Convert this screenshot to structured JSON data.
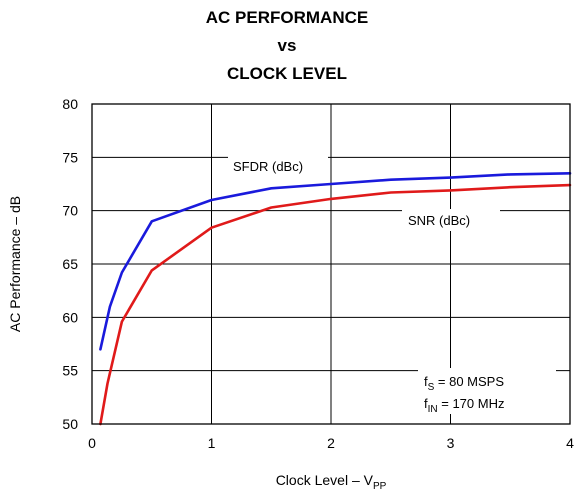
{
  "chart_data": {
    "type": "line",
    "title": [
      "AC PERFORMANCE",
      "vs",
      "CLOCK LEVEL"
    ],
    "xlabel": {
      "main": "Clock Level – V",
      "sub": "PP"
    },
    "ylabel": "AC Performance – dB",
    "xlim": [
      0,
      4
    ],
    "ylim": [
      50,
      80
    ],
    "xticks": [
      0,
      1,
      2,
      3,
      4
    ],
    "yticks": [
      50,
      55,
      60,
      65,
      70,
      75,
      80
    ],
    "grid": true,
    "series": [
      {
        "name": "SFDR (dBc)",
        "color": "#1a1adc",
        "x": [
          0.07,
          0.15,
          0.25,
          0.5,
          1.0,
          1.5,
          2.0,
          2.5,
          3.0,
          3.5,
          4.0
        ],
        "y": [
          57.0,
          61.0,
          64.2,
          69.0,
          71.0,
          72.1,
          72.5,
          72.9,
          73.1,
          73.4,
          73.5
        ]
      },
      {
        "name": "SNR (dBc)",
        "color": "#e01a1a",
        "x": [
          0.07,
          0.13,
          0.25,
          0.5,
          1.0,
          1.5,
          2.0,
          2.5,
          3.0,
          3.5,
          4.0
        ],
        "y": [
          50.0,
          53.8,
          59.6,
          64.4,
          68.4,
          70.3,
          71.1,
          71.7,
          71.9,
          72.2,
          72.4
        ]
      }
    ],
    "annotations": [
      {
        "parts": [
          {
            "text": "f"
          },
          {
            "text": "S",
            "sub": true
          },
          {
            "text": " = 80 MSPS"
          }
        ]
      },
      {
        "parts": [
          {
            "text": "f"
          },
          {
            "text": "IN",
            "sub": true
          },
          {
            "text": " = 170 MHz"
          }
        ]
      }
    ]
  }
}
